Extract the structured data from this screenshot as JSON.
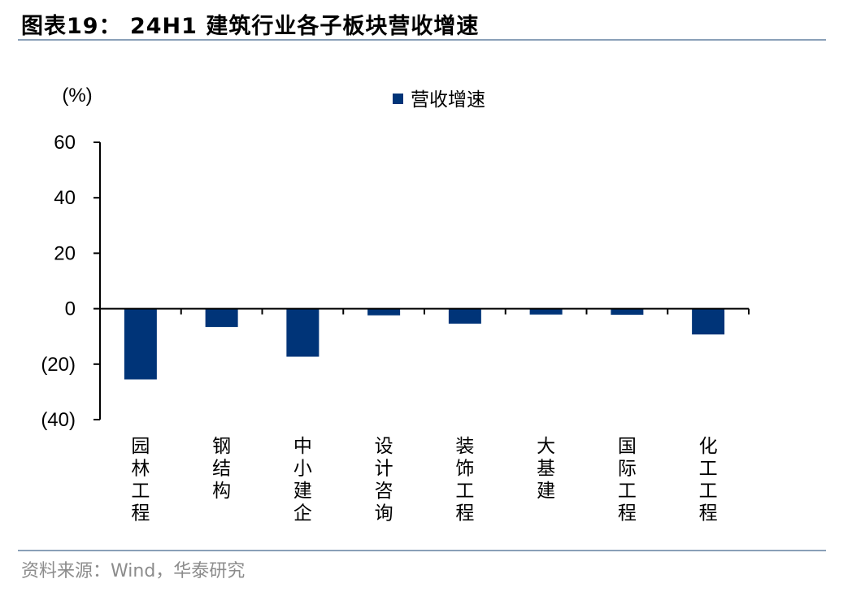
{
  "header": {
    "title": "图表19： 24H1 建筑行业各子板块营收增速"
  },
  "footer": {
    "source": "资料来源：Wind，华泰研究"
  },
  "chart_data": {
    "type": "bar",
    "unit_label": "(%)",
    "categories": [
      "园林工程",
      "钢结构",
      "中小建企",
      "设计咨询",
      "装饰工程",
      "大基建",
      "国际工程",
      "化工工程"
    ],
    "series": [
      {
        "name": "营收增速",
        "values": [
          -25.5,
          -6.6,
          -17.3,
          -2.4,
          -5.4,
          -2.1,
          -2.2,
          -9.3
        ],
        "color": "#003478"
      }
    ],
    "ylim": [
      -40,
      60
    ],
    "yticks": [
      60,
      40,
      20,
      0,
      -20,
      -40
    ],
    "ytick_labels": [
      "60",
      "40",
      "20",
      "0",
      "(20)",
      "(40)"
    ],
    "legend_position": "top-center",
    "grid": false
  }
}
